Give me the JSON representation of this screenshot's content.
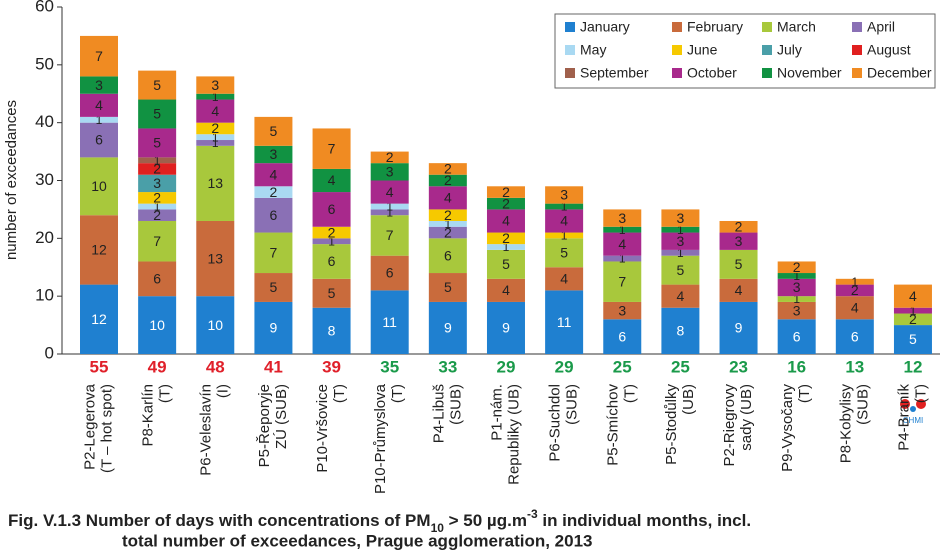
{
  "chart_data": {
    "type": "stacked_bar",
    "title": [
      "Fig. V.1.3  Number of days with concentrations of PM",
      "10",
      " > 50 µg.m",
      "-3",
      " in individual months, incl."
    ],
    "title_line2": "total number of exceedances, Prague agglomeration, 2013",
    "ylabel": "number of exceedances",
    "categories": [
      [
        "P2-Legerova",
        "(T – hot spot)"
      ],
      [
        "P8-Karlín",
        "(T)"
      ],
      [
        "P6-Veleslavín",
        "(I)"
      ],
      [
        "P5-Řeporyje",
        "ZÚ (SUB)"
      ],
      [
        "P10-Vršovice",
        "(T)"
      ],
      [
        "P10-Průmyslova",
        "(T)"
      ],
      [
        "P4-Libuš",
        "(SUB)"
      ],
      [
        "P1-nám.",
        "Republiky (UB)"
      ],
      [
        "P6-Suchdol",
        "(SUB)"
      ],
      [
        "P5-Smíchov",
        "(T)"
      ],
      [
        "P5-Stodůlky",
        "(UB)"
      ],
      [
        "P2-Riegrovy",
        "sady (UB)"
      ],
      [
        "P9-Vysočany",
        "(T)"
      ],
      [
        "P8-Kobylisy",
        "(SUB)"
      ],
      [
        "P4-Braník",
        "(T)"
      ]
    ],
    "totals": [
      55,
      49,
      48,
      41,
      39,
      35,
      33,
      29,
      29,
      25,
      25,
      23,
      16,
      13,
      12
    ],
    "total_colors": [
      "#e0202a",
      "#e0202a",
      "#e0202a",
      "#e0202a",
      "#e0202a",
      "#1a9a4a",
      "#1a9a4a",
      "#1a9a4a",
      "#1a9a4a",
      "#1a9a4a",
      "#1a9a4a",
      "#1a9a4a",
      "#1a9a4a",
      "#1a9a4a",
      "#1a9a4a"
    ],
    "series": [
      {
        "name": "January",
        "color": "#1f80d0",
        "values": [
          12,
          10,
          10,
          9,
          8,
          11,
          9,
          9,
          11,
          6,
          8,
          9,
          6,
          6,
          5
        ]
      },
      {
        "name": "February",
        "color": "#c96b3c",
        "values": [
          12,
          6,
          13,
          5,
          5,
          6,
          5,
          4,
          4,
          3,
          4,
          4,
          3,
          4,
          0
        ]
      },
      {
        "name": "March",
        "color": "#a8c83c",
        "values": [
          10,
          7,
          13,
          7,
          6,
          7,
          6,
          5,
          5,
          7,
          5,
          5,
          1,
          0,
          2
        ]
      },
      {
        "name": "April",
        "color": "#8a70b5",
        "values": [
          6,
          2,
          1,
          6,
          1,
          1,
          2,
          0,
          0,
          1,
          1,
          0,
          0,
          0,
          0
        ]
      },
      {
        "name": "May",
        "color": "#a9d9f2",
        "values": [
          1,
          1,
          1,
          2,
          0,
          1,
          1,
          1,
          0,
          0,
          0,
          0,
          0,
          0,
          0
        ]
      },
      {
        "name": "June",
        "color": "#f6c900",
        "values": [
          0,
          2,
          2,
          0,
          2,
          0,
          2,
          2,
          1,
          0,
          0,
          0,
          0,
          0,
          0
        ]
      },
      {
        "name": "July",
        "color": "#4a9fa8",
        "values": [
          0,
          3,
          0,
          0,
          0,
          0,
          0,
          0,
          0,
          0,
          0,
          0,
          0,
          0,
          0
        ]
      },
      {
        "name": "August",
        "color": "#e02020",
        "values": [
          0,
          2,
          0,
          0,
          0,
          0,
          0,
          0,
          0,
          0,
          0,
          0,
          0,
          0,
          0
        ]
      },
      {
        "name": "September",
        "color": "#a0604c",
        "values": [
          0,
          1,
          0,
          0,
          0,
          0,
          0,
          0,
          0,
          0,
          0,
          0,
          0,
          0,
          0
        ]
      },
      {
        "name": "October",
        "color": "#a8298c",
        "values": [
          4,
          5,
          4,
          4,
          6,
          4,
          4,
          4,
          4,
          4,
          3,
          3,
          3,
          2,
          1
        ]
      },
      {
        "name": "November",
        "color": "#119242",
        "values": [
          3,
          5,
          1,
          3,
          4,
          3,
          2,
          2,
          1,
          1,
          1,
          0,
          1,
          0,
          0
        ]
      },
      {
        "name": "December",
        "color": "#f08b22",
        "values": [
          7,
          5,
          3,
          5,
          7,
          2,
          2,
          2,
          3,
          3,
          3,
          2,
          2,
          1,
          4
        ]
      }
    ],
    "ylim": [
      0,
      60
    ],
    "yticks": [
      0,
      10,
      20,
      30,
      40,
      50,
      60
    ],
    "grid": false,
    "legend": "top-right",
    "logo_text": "CHMI"
  }
}
